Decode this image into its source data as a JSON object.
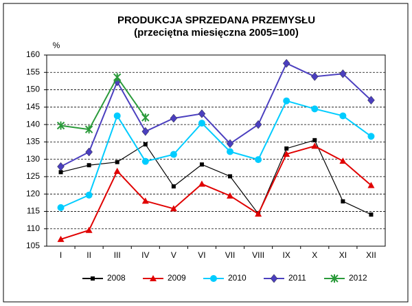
{
  "chart_data": {
    "type": "line",
    "title": "PRODUKCJA SPRZEDANA PRZEMYSŁU",
    "subtitle": "(przeciętna miesięczna 2005=100)",
    "ylabel": "%",
    "categories": [
      "I",
      "II",
      "III",
      "IV",
      "V",
      "VI",
      "VII",
      "VIII",
      "IX",
      "X",
      "XI",
      "XII"
    ],
    "ylim": [
      105,
      160
    ],
    "yticks": [
      105,
      110,
      115,
      120,
      125,
      130,
      135,
      140,
      145,
      150,
      155,
      160
    ],
    "grid": true,
    "legend": "bottom",
    "series": [
      {
        "name": "2008",
        "color": "#000000",
        "marker": "square",
        "values": [
          126.3,
          128.3,
          129.2,
          134.3,
          122.2,
          128.5,
          125.1,
          114.3,
          133.1,
          135.5,
          117.9,
          114.1
        ]
      },
      {
        "name": "2009",
        "color": "#e00000",
        "marker": "triangle",
        "values": [
          107.0,
          109.6,
          126.6,
          118.0,
          115.8,
          122.9,
          119.5,
          114.3,
          131.5,
          133.8,
          129.5,
          122.5
        ]
      },
      {
        "name": "2010",
        "color": "#00ccff",
        "marker": "circle",
        "values": [
          116.1,
          119.7,
          142.5,
          129.4,
          131.4,
          140.4,
          132.2,
          129.9,
          146.8,
          144.5,
          142.5,
          136.6
        ]
      },
      {
        "name": "2011",
        "color": "#4b3fbf",
        "marker": "diamond",
        "values": [
          127.9,
          132.1,
          152.3,
          138.0,
          141.8,
          143.1,
          134.5,
          140.0,
          157.6,
          153.8,
          154.6,
          147.0
        ]
      },
      {
        "name": "2012",
        "color": "#2a9a3a",
        "marker": "star",
        "values": [
          139.7,
          138.6,
          153.6,
          142.0,
          null,
          null,
          null,
          null,
          null,
          null,
          null,
          null
        ]
      }
    ]
  }
}
